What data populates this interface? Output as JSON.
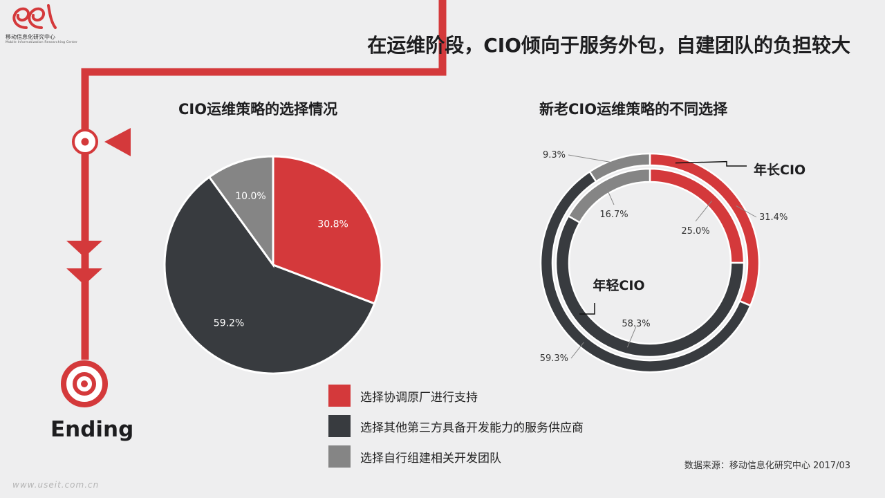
{
  "brand": {
    "name": "移动信息化研究中心",
    "subtitle": "Mobile Informatization Researching Center"
  },
  "title": "在运维阶段，CIO倾向于服务外包，自建团队的负担较大",
  "timeline": {
    "end_label": "Ending"
  },
  "footer": {
    "source": "数据来源：移动信息化研究中心 2017/03",
    "watermark": "www.useit.com.cn"
  },
  "colors": {
    "red": "#d4393b",
    "dark": "#383b3f",
    "gray": "#858585"
  },
  "legend": [
    {
      "label": "选择协调原厂进行支持",
      "color": "#d4393b"
    },
    {
      "label": "选择其他第三方具备开发能力的服务供应商",
      "color": "#383b3f"
    },
    {
      "label": "选择自行组建相关开发团队",
      "color": "#858585"
    }
  ],
  "chart_data": [
    {
      "type": "pie",
      "title": "CIO运维策略的选择情况",
      "categories": [
        "选择协调原厂进行支持",
        "选择其他第三方具备开发能力的服务供应商",
        "选择自行组建相关开发团队"
      ],
      "values": [
        30.8,
        59.2,
        10.0
      ],
      "labels": [
        "30.8%",
        "59.2%",
        "10.0%"
      ],
      "colors": [
        "#d4393b",
        "#383b3f",
        "#858585"
      ]
    },
    {
      "type": "pie",
      "title": "新老CIO运维策略的不同选择",
      "categories": [
        "选择协调原厂进行支持",
        "选择其他第三方具备开发能力的服务供应商",
        "选择自行组建相关开发团队"
      ],
      "series": [
        {
          "name": "年长CIO",
          "ring": "outer",
          "values": [
            31.4,
            59.3,
            9.3
          ],
          "labels": [
            "31.4%",
            "59.3%",
            "9.3%"
          ]
        },
        {
          "name": "年轻CIO",
          "ring": "inner",
          "values": [
            25.0,
            58.3,
            16.7
          ],
          "labels": [
            "25.0%",
            "58.3%",
            "16.7%"
          ]
        }
      ],
      "colors": [
        "#d4393b",
        "#383b3f",
        "#858585"
      ]
    }
  ]
}
